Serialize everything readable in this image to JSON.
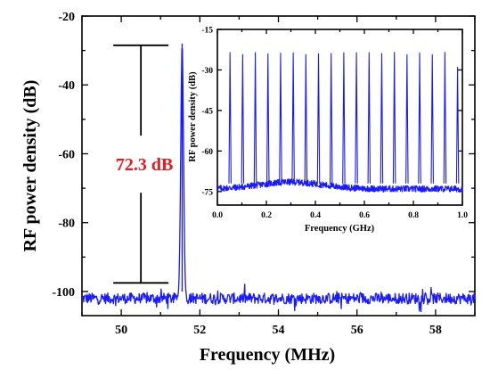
{
  "chart_data": [
    {
      "type": "line",
      "title": "",
      "xlabel": "Frequency (MHz)",
      "ylabel": "RF power density (dB)",
      "xlim": [
        49,
        59
      ],
      "ylim": [
        -107,
        -20
      ],
      "xticks": [
        "50",
        "52",
        "54",
        "56",
        "58"
      ],
      "yticks": [
        "-20",
        "-40",
        "-60",
        "-80",
        "-100"
      ],
      "grid": false,
      "noise_floor_db": -102,
      "series": [
        {
          "color": "#1a1aff",
          "peaks": [
            {
              "x": 51.55,
              "y": -28
            }
          ]
        }
      ],
      "annotation": {
        "label": "72.3 dB",
        "color": "#e8191f",
        "x": 50.5,
        "y_top": -28.5,
        "y_bottom": -97.5
      }
    },
    {
      "type": "line",
      "title": "",
      "xlabel": "Frequency (GHz)",
      "ylabel": "RF power density (dB)",
      "xlim": [
        0,
        1.0
      ],
      "ylim": [
        -80,
        -15
      ],
      "xticks": [
        "0.0",
        "0.2",
        "0.4",
        "0.6",
        "0.8",
        "1.0"
      ],
      "yticks": [
        "-15",
        "-30",
        "-45",
        "-60",
        "-75"
      ],
      "grid": false,
      "noise_floor_db": -74,
      "series": [
        {
          "color": "#1a1aff",
          "peak_spacing": 0.0516,
          "peak_count": 19,
          "peak_level_db": -24,
          "last_peak_level_db": -29
        }
      ]
    }
  ]
}
